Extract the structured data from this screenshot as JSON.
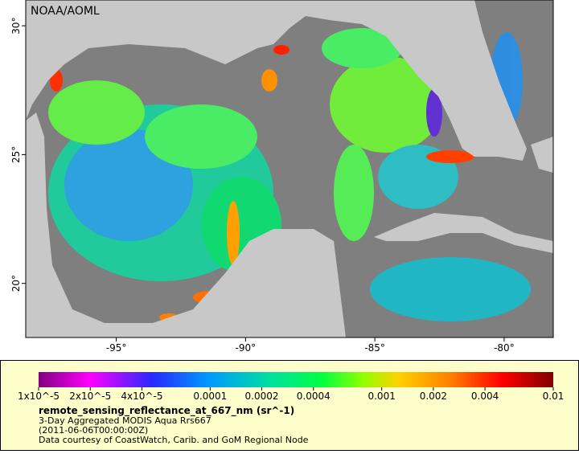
{
  "map": {
    "credit": "NOAA/AOML",
    "xlim": [
      -98.5,
      -78.1
    ],
    "ylim": [
      17.9,
      31.0
    ],
    "xticks": [
      {
        "value": -95,
        "label": "-95°"
      },
      {
        "value": -90,
        "label": "-90°"
      },
      {
        "value": -85,
        "label": "-85°"
      },
      {
        "value": -80,
        "label": "-80°"
      }
    ],
    "yticks": [
      {
        "value": 20,
        "label": "20°"
      },
      {
        "value": 25,
        "label": "25°"
      },
      {
        "value": 30,
        "label": "30°"
      }
    ]
  },
  "colorbar": {
    "log": true,
    "lim": [
      1e-05,
      0.01
    ],
    "ticks": [
      {
        "value": 1e-05,
        "label": "1x10^-5"
      },
      {
        "value": 2e-05,
        "label": "2x10^-5"
      },
      {
        "value": 4e-05,
        "label": "4x10^-5"
      },
      0.0001,
      0.0002,
      0.0004,
      0.001,
      0.002,
      0.004,
      0.01
    ]
  },
  "caption": {
    "title": "remote_sensing_reflectance_at_667_nm (sr^-1)",
    "lines": [
      "3-Day Aggregated MODIS Aqua Rrs667",
      "(2011-06-06T00:00:00Z)",
      "Data courtesy of CoastWatch, Carib. and GoM Regional Node"
    ]
  }
}
